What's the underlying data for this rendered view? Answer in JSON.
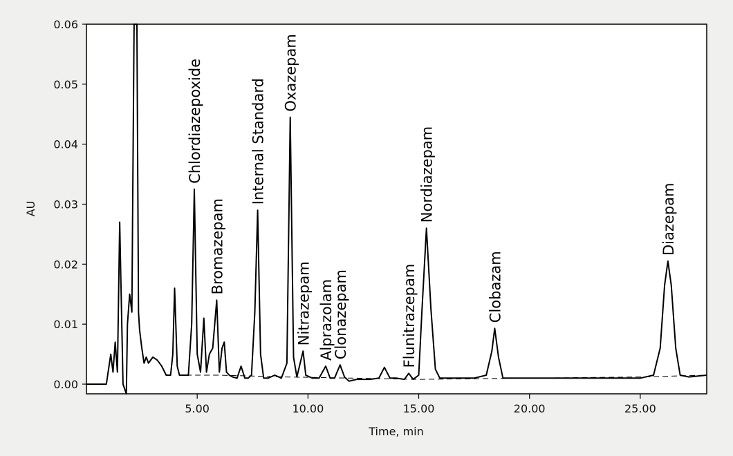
{
  "chart_data": {
    "type": "line",
    "title": "",
    "xlabel": "Time, min",
    "ylabel": "AU",
    "xlim": [
      0,
      28
    ],
    "ylim": [
      0,
      0.06
    ],
    "x_ticks": [
      {
        "value": 5,
        "label": "5.00"
      },
      {
        "value": 10,
        "label": "10.00"
      },
      {
        "value": 15,
        "label": "15.00"
      },
      {
        "value": 20,
        "label": "20.00"
      },
      {
        "value": 25,
        "label": "25.00"
      }
    ],
    "y_ticks": [
      {
        "value": 0.0,
        "label": "0.00"
      },
      {
        "value": 0.01,
        "label": "0.01"
      },
      {
        "value": 0.02,
        "label": "0.02"
      },
      {
        "value": 0.03,
        "label": "0.03"
      },
      {
        "value": 0.04,
        "label": "0.04"
      },
      {
        "value": 0.05,
        "label": "0.05"
      },
      {
        "value": 0.06,
        "label": "0.06"
      }
    ],
    "grid": false,
    "series": [
      {
        "style": "solid",
        "color": "#000000",
        "x": [
          0,
          0.9,
          1.1,
          1.2,
          1.3,
          1.4,
          1.5,
          1.65,
          1.8,
          1.85,
          1.95,
          2.05,
          2.15,
          2.2,
          2.28,
          2.35,
          2.4,
          2.5,
          2.6,
          2.7,
          2.8,
          3.0,
          3.2,
          3.4,
          3.6,
          3.8,
          3.9,
          3.98,
          4.1,
          4.2,
          4.4,
          4.6,
          4.75,
          4.87,
          5.0,
          5.15,
          5.3,
          5.42,
          5.55,
          5.7,
          5.88,
          6.0,
          6.12,
          6.22,
          6.32,
          6.45,
          6.6,
          6.8,
          6.98,
          7.15,
          7.3,
          7.45,
          7.6,
          7.73,
          7.86,
          8.0,
          8.2,
          8.5,
          8.8,
          9.05,
          9.2,
          9.35,
          9.5,
          9.65,
          9.78,
          9.9,
          10.2,
          10.5,
          10.8,
          11.0,
          11.2,
          11.45,
          11.65,
          11.85,
          12.2,
          12.8,
          13.2,
          13.45,
          13.7,
          14.0,
          14.35,
          14.55,
          14.75,
          15.0,
          15.15,
          15.35,
          15.55,
          15.75,
          15.95,
          16.5,
          17.5,
          18.05,
          18.3,
          18.43,
          18.6,
          18.8,
          19.2,
          20.0,
          21.0,
          22.0,
          23.0,
          24.0,
          25.0,
          25.6,
          25.9,
          26.1,
          26.25,
          26.4,
          26.6,
          26.8,
          27.2,
          28.0
        ],
        "y": [
          0.0,
          0.0,
          0.005,
          0.002,
          0.007,
          0.002,
          0.027,
          0.0,
          -0.002,
          0.01,
          0.015,
          0.012,
          0.06,
          0.06,
          0.06,
          0.012,
          0.009,
          0.006,
          0.0035,
          0.0045,
          0.0035,
          0.0045,
          0.004,
          0.003,
          0.0015,
          0.0015,
          0.005,
          0.016,
          0.003,
          0.0015,
          0.0015,
          0.0015,
          0.01,
          0.0325,
          0.005,
          0.002,
          0.011,
          0.002,
          0.005,
          0.006,
          0.014,
          0.002,
          0.006,
          0.007,
          0.002,
          0.0015,
          0.0012,
          0.001,
          0.003,
          0.001,
          0.001,
          0.0015,
          0.012,
          0.029,
          0.005,
          0.001,
          0.001,
          0.0015,
          0.001,
          0.0035,
          0.0445,
          0.0045,
          0.0012,
          0.0035,
          0.0055,
          0.0015,
          0.001,
          0.001,
          0.003,
          0.001,
          0.001,
          0.0032,
          0.0012,
          0.0005,
          0.0008,
          0.0008,
          0.001,
          0.0028,
          0.001,
          0.001,
          0.0008,
          0.0018,
          0.0008,
          0.0015,
          0.0125,
          0.026,
          0.0125,
          0.0025,
          0.001,
          0.001,
          0.001,
          0.0015,
          0.0055,
          0.0093,
          0.0045,
          0.001,
          0.001,
          0.001,
          0.001,
          0.001,
          0.001,
          0.001,
          0.001,
          0.0015,
          0.006,
          0.0165,
          0.0205,
          0.0165,
          0.006,
          0.0015,
          0.0012,
          0.0015
        ]
      },
      {
        "style": "dashed",
        "color": "#000000",
        "x": [
          4.5,
          6.0,
          9.0,
          12.0,
          15.0,
          20.0,
          25.0,
          28.0
        ],
        "y": [
          0.0015,
          0.0015,
          0.0012,
          0.001,
          0.0008,
          0.001,
          0.0012,
          0.0015
        ]
      }
    ],
    "annotations": [
      {
        "text": "Chlordiazepoxide",
        "x": 4.87,
        "y": 0.0325
      },
      {
        "text": "Bromazepam",
        "x": 5.88,
        "y": 0.014
      },
      {
        "text": "Internal Standard",
        "x": 7.73,
        "y": 0.029
      },
      {
        "text": "Oxazepam",
        "x": 9.2,
        "y": 0.0445
      },
      {
        "text": "Nitrazepam",
        "x": 9.78,
        "y": 0.0055
      },
      {
        "text": "Alprazolam",
        "x": 10.8,
        "y": 0.003
      },
      {
        "text": "Clonazepam",
        "x": 11.45,
        "y": 0.0032
      },
      {
        "text": "Flunitrazepam",
        "x": 14.55,
        "y": 0.0018
      },
      {
        "text": "Nordiazepam",
        "x": 15.35,
        "y": 0.026
      },
      {
        "text": "Clobazam",
        "x": 18.43,
        "y": 0.0093
      },
      {
        "text": "Diazepam",
        "x": 26.25,
        "y": 0.0205
      }
    ]
  }
}
